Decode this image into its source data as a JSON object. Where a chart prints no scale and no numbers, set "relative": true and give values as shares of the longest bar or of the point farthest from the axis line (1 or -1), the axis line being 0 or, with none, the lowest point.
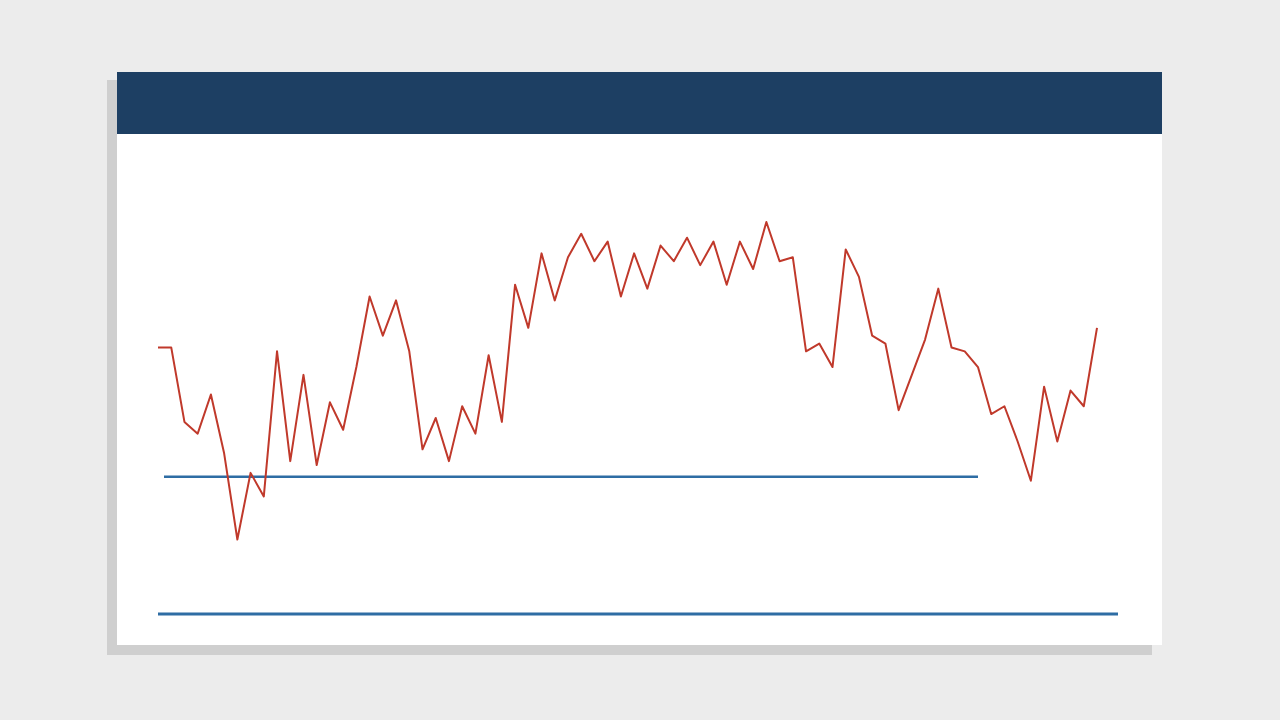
{
  "chart_data": {
    "type": "line",
    "relative": true,
    "categories": [
      null,
      null,
      null,
      null,
      null,
      null,
      null,
      null,
      null,
      null,
      null,
      null,
      null,
      null,
      null,
      null,
      null,
      null,
      null,
      null,
      null,
      null,
      null,
      null,
      null,
      null,
      null,
      null,
      null,
      null,
      null,
      null,
      null,
      null,
      null,
      null,
      null,
      null,
      null,
      null,
      null,
      null,
      null,
      null,
      null,
      null,
      null,
      null,
      null,
      null,
      null,
      null,
      null,
      null,
      null,
      null,
      null,
      null,
      null,
      null,
      null,
      null,
      null,
      null,
      null,
      null,
      null,
      null,
      null,
      null,
      null,
      null
    ],
    "series": [
      {
        "color": "#c0392b",
        "values": [
          0.68,
          0.68,
          0.49,
          0.46,
          0.56,
          0.41,
          0.19,
          0.36,
          0.3,
          0.67,
          0.39,
          0.61,
          0.38,
          0.54,
          0.47,
          0.63,
          0.81,
          0.71,
          0.8,
          0.67,
          0.42,
          0.5,
          0.39,
          0.53,
          0.46,
          0.66,
          0.49,
          0.84,
          0.73,
          0.92,
          0.8,
          0.91,
          0.97,
          0.9,
          0.95,
          0.81,
          0.92,
          0.83,
          0.94,
          0.9,
          0.96,
          0.89,
          0.95,
          0.84,
          0.95,
          0.88,
          1,
          0.9,
          0.91,
          0.67,
          0.69,
          0.63,
          0.93,
          0.86,
          0.71,
          0.69,
          0.52,
          0.61,
          0.7,
          0.83,
          0.68,
          0.67,
          0.63,
          0.51,
          0.53,
          0.44,
          0.34,
          0.58,
          0.44,
          0.57,
          0.53,
          0.73
        ]
      }
    ],
    "ref_lines": [
      {
        "axis": "y",
        "value": 0.35,
        "color": "#2e6da4"
      }
    ]
  }
}
